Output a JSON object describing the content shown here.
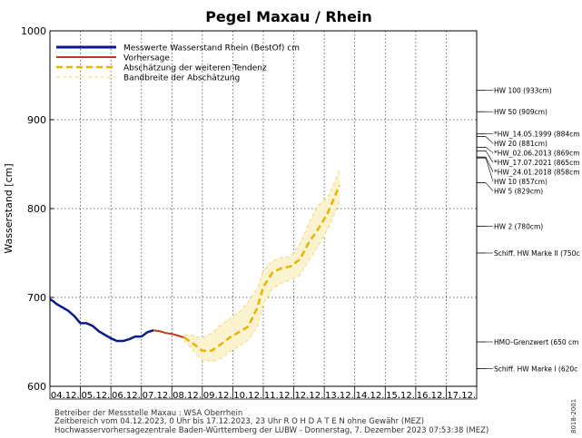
{
  "chart_data": {
    "type": "line",
    "title": "Pegel Maxau / Rhein",
    "ylabel": "Wasserstand [cm]",
    "xlabel": "",
    "ylim": [
      600,
      1000
    ],
    "yticks": [
      600,
      700,
      800,
      900,
      1000
    ],
    "xlim": [
      0,
      14
    ],
    "categories": [
      "04.12.",
      "05.12.",
      "06.12.",
      "07.12.",
      "08.12.",
      "09.12.",
      "10.12.",
      "11.12.",
      "12.12.",
      "13.12.",
      "14.12.",
      "15.12.",
      "16.12.",
      "17.12."
    ],
    "grid": true,
    "legend_position": "top-left",
    "legend": [
      {
        "label": "Messwerte Wasserstand Rhein (BestOf)    cm",
        "style": "solid",
        "color": "#0a1a8c"
      },
      {
        "label": "Vorhersage",
        "style": "solid",
        "color": "#c0391b"
      },
      {
        "label": "Abschätzung der weiteren Tendenz",
        "style": "dashed",
        "color": "#e8b400"
      },
      {
        "label": "Bandbreite der Abschätzung",
        "style": "dashed-thin",
        "color": "#f3d97a"
      }
    ],
    "series": [
      {
        "name": "Messwerte Wasserstand Rhein (BestOf)",
        "color": "#0a1a8c",
        "x": [
          0.0,
          0.1,
          0.2,
          0.35,
          0.5,
          0.6,
          0.8,
          1.0,
          1.2,
          1.4,
          1.6,
          1.8,
          2.0,
          2.2,
          2.4,
          2.6,
          2.8,
          3.0,
          3.2,
          3.4
        ],
        "y": [
          698,
          696,
          693,
          690,
          687,
          685,
          679,
          671,
          671,
          668,
          662,
          658,
          654,
          651,
          651,
          653,
          656,
          656,
          661,
          663
        ]
      },
      {
        "name": "Vorhersage",
        "color": "#c0391b",
        "x": [
          3.4,
          3.6,
          3.8,
          4.0,
          4.2,
          4.4
        ],
        "y": [
          663,
          662,
          660,
          659,
          657,
          655
        ]
      },
      {
        "name": "Abschätzung der weiteren Tendenz",
        "color": "#e8b400",
        "x": [
          4.4,
          4.7,
          5.0,
          5.3,
          5.6,
          5.9,
          6.2,
          6.5,
          6.8,
          7.0,
          7.3,
          7.6,
          7.9,
          8.2,
          8.5,
          8.8,
          9.1,
          9.3,
          9.5
        ],
        "y": [
          655,
          648,
          640,
          640,
          647,
          655,
          661,
          667,
          688,
          712,
          728,
          733,
          735,
          743,
          762,
          777,
          794,
          810,
          826
        ]
      }
    ],
    "band": {
      "name": "Bandbreite der Abschätzung",
      "color": "#f3d97a",
      "x": [
        4.4,
        4.7,
        5.0,
        5.3,
        5.6,
        5.9,
        6.2,
        6.5,
        6.8,
        7.0,
        7.3,
        7.6,
        7.9,
        8.2,
        8.5,
        8.8,
        9.1,
        9.3,
        9.5
      ],
      "upper": [
        658,
        657,
        654,
        660,
        669,
        676,
        683,
        695,
        710,
        730,
        741,
        745,
        746,
        760,
        784,
        804,
        812,
        827,
        844
      ],
      "lower": [
        652,
        640,
        629,
        628,
        631,
        639,
        645,
        652,
        667,
        692,
        710,
        716,
        720,
        725,
        742,
        758,
        776,
        791,
        808
      ]
    },
    "reference_lines": [
      {
        "value": 933,
        "label": "HW 100 (933cm)"
      },
      {
        "value": 909,
        "label": "HW 50 (909cm)"
      },
      {
        "value": 884,
        "label": "*HW_14.05.1999 (884cm"
      },
      {
        "value": 881,
        "label": "HW 20 (881cm)"
      },
      {
        "value": 869,
        "label": "*HW_02.06.2013 (869cm"
      },
      {
        "value": 865,
        "label": "*HW_17.07.2021 (865cm"
      },
      {
        "value": 858,
        "label": "*HW_24.01.2018 (858cm"
      },
      {
        "value": 857,
        "label": "HW 10 (857cm)"
      },
      {
        "value": 829,
        "label": "HW 5 (829cm)"
      },
      {
        "value": 780,
        "label": "HW 2 (780cm)"
      },
      {
        "value": 750,
        "label": "Schiff. HW Marke II (750c"
      },
      {
        "value": 650,
        "label": "HMO-Grenzwert (650 cm"
      },
      {
        "value": 620,
        "label": "Schiff. HW Marke I (620c"
      }
    ]
  },
  "footer": {
    "line1": "Betreiber der Messstelle Maxau : WSA Oberrhein",
    "line2": "Zeitbereich vom 04.12.2023, 0 Uhr bis 17.12.2023, 23 Uhr    R O H D A T E N ohne Gewähr (MEZ)",
    "line3": "Hochwasservorhersagezentrale Baden-Württemberg der LUBW - Donnerstag, 7. Dezember 2023 07:53:38 (MEZ)"
  },
  "side_code": "8018-2001"
}
